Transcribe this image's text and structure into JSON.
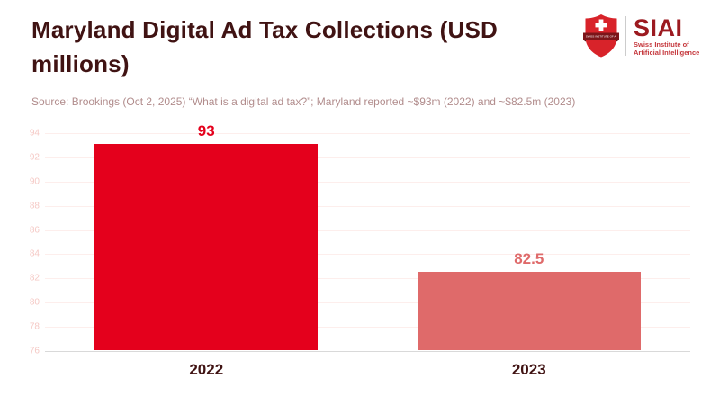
{
  "header": {
    "title": "Maryland Digital Ad Tax Collections (USD millions)",
    "source": "Source: Brookings (Oct 2, 2025) “What is a digital ad tax?”; Maryland reported ~$93m (2022) and ~$82.5m (2023)"
  },
  "logo": {
    "brand": "SIAI",
    "subtitle_line1": "Swiss Institute of",
    "subtitle_line2": "Artificial Intelligence",
    "shield_icon": "swiss-shield-icon",
    "colors": {
      "shield": "#d8232a",
      "cross": "#ffffff",
      "banner": "#7c1519",
      "brand_text": "#9c1a20",
      "subtitle_text": "#c5373c"
    }
  },
  "chart_data": {
    "type": "bar",
    "title": "Maryland Digital Ad Tax Collections (USD millions)",
    "categories": [
      "2022",
      "2023"
    ],
    "values": [
      93,
      82.5
    ],
    "value_labels": [
      "93",
      "82.5"
    ],
    "bar_colors": [
      "#e4001c",
      "#df6a6a"
    ],
    "ylim": [
      76,
      94
    ],
    "yticks": [
      76,
      78,
      80,
      82,
      84,
      86,
      88,
      90,
      92,
      94
    ],
    "grid": true,
    "legend": false,
    "xlabel": "",
    "ylabel": "",
    "bar_width_fraction": 0.346,
    "colors": {
      "gridline": "#fdeeec",
      "baseline": "#d9d9d9",
      "tick_label": "#f5c9c5",
      "category_label": "#401313"
    }
  }
}
